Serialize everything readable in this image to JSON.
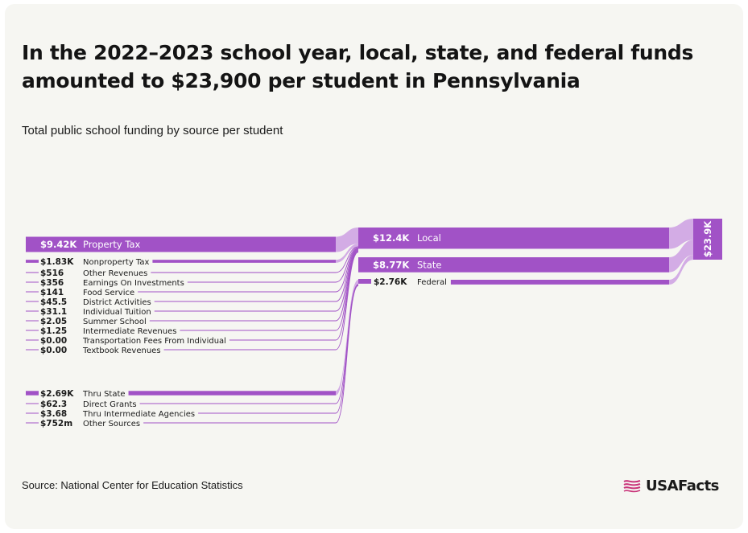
{
  "title": "In the 2022–2023 school year, local, state, and federal funds amounted to $23,900 per student in Pennsylvania",
  "subtitle": "Total public school funding by source per student",
  "source": "Source: National Center for Education Statistics",
  "brand": {
    "name": "USAFacts",
    "icon": "usafacts-flag-icon"
  },
  "colors": {
    "primary": "#a152c6",
    "link": "#d3ace5",
    "text": "#1a1a1a",
    "background": "#f6f6f2"
  },
  "chart_data": {
    "type": "sankey",
    "units": "dollars per student",
    "sources": [
      {
        "id": "property_tax",
        "value_label": "$9.42K",
        "label": "Property Tax",
        "value": 9420,
        "target": "local"
      },
      {
        "id": "nonproperty_tax",
        "value_label": "$1.83K",
        "label": "Nonproperty Tax",
        "value": 1830,
        "target": "local"
      },
      {
        "id": "other_revenues",
        "value_label": "$516",
        "label": "Other Revenues",
        "value": 516,
        "target": "local"
      },
      {
        "id": "earnings_on_investments",
        "value_label": "$356",
        "label": "Earnings On Investments",
        "value": 356,
        "target": "local"
      },
      {
        "id": "food_service",
        "value_label": "$141",
        "label": "Food Service",
        "value": 141,
        "target": "local"
      },
      {
        "id": "district_activities",
        "value_label": "$45.5",
        "label": "District Activities",
        "value": 45.5,
        "target": "local"
      },
      {
        "id": "individual_tuition",
        "value_label": "$31.1",
        "label": "Individual Tuition",
        "value": 31.1,
        "target": "local"
      },
      {
        "id": "summer_school",
        "value_label": "$2.05",
        "label": "Summer School",
        "value": 2.05,
        "target": "local"
      },
      {
        "id": "intermediate_revenues",
        "value_label": "$1.25",
        "label": "Intermediate Revenues",
        "value": 1.25,
        "target": "local"
      },
      {
        "id": "transportation_fees",
        "value_label": "$0.00",
        "label": "Transportation Fees From Individual",
        "value": 0,
        "target": "local"
      },
      {
        "id": "textbook_revenues",
        "value_label": "$0.00",
        "label": "Textbook Revenues",
        "value": 0,
        "target": "local"
      },
      {
        "id": "thru_state",
        "value_label": "$2.69K",
        "label": "Thru State",
        "value": 2690,
        "target": "federal"
      },
      {
        "id": "direct_grants",
        "value_label": "$62.3",
        "label": "Direct Grants",
        "value": 62.3,
        "target": "federal"
      },
      {
        "id": "thru_intermediate_agencies",
        "value_label": "$3.68",
        "label": "Thru Intermediate Agencies",
        "value": 3.68,
        "target": "federal"
      },
      {
        "id": "other_sources",
        "value_label": "$752m",
        "label": "Other Sources",
        "value": 0.752,
        "target": "federal"
      }
    ],
    "middle": [
      {
        "id": "local",
        "value_label": "$12.4K",
        "label": "Local",
        "value": 12400
      },
      {
        "id": "state",
        "value_label": "$8.77K",
        "label": "State",
        "value": 8770
      },
      {
        "id": "federal",
        "value_label": "$2.76K",
        "label": "Federal",
        "value": 2760
      }
    ],
    "total": {
      "value_label": "$23.9K",
      "value": 23900
    }
  }
}
